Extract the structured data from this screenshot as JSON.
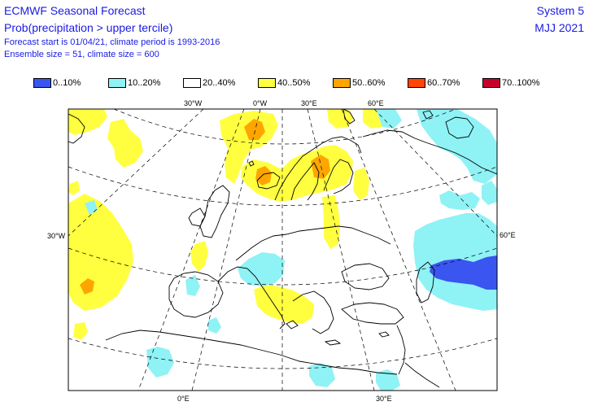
{
  "header": {
    "title": "ECMWF Seasonal Forecast",
    "subtitle": "Prob(precipitation > upper tercile)",
    "line3": "Forecast start is 01/04/21, climate period is 1993-2016",
    "line4": "Ensemble size = 51, climate size = 600",
    "system": "System 5",
    "period": "MJJ 2021"
  },
  "legend": [
    {
      "label": "0..10%",
      "color": "#3a55f0"
    },
    {
      "label": "10..20%",
      "color": "#8ff2f5"
    },
    {
      "label": "20..40%",
      "color": "#ffffff"
    },
    {
      "label": "40..50%",
      "color": "#ffff40"
    },
    {
      "label": "50..60%",
      "color": "#ffa500"
    },
    {
      "label": "60..70%",
      "color": "#ff4500"
    },
    {
      "label": "70..100%",
      "color": "#c8002c"
    }
  ],
  "graticule": {
    "top": [
      "30°W",
      "0°W",
      "30°E",
      "60°E"
    ],
    "left": "30°W",
    "right": "60°E",
    "bottom": [
      "0°E",
      "30°E"
    ]
  },
  "colors": {
    "yellow": "#ffff40",
    "cyan": "#8ff2f5",
    "blue": "#3a55f0",
    "orange": "#ffa500",
    "red": "#ff4500"
  }
}
